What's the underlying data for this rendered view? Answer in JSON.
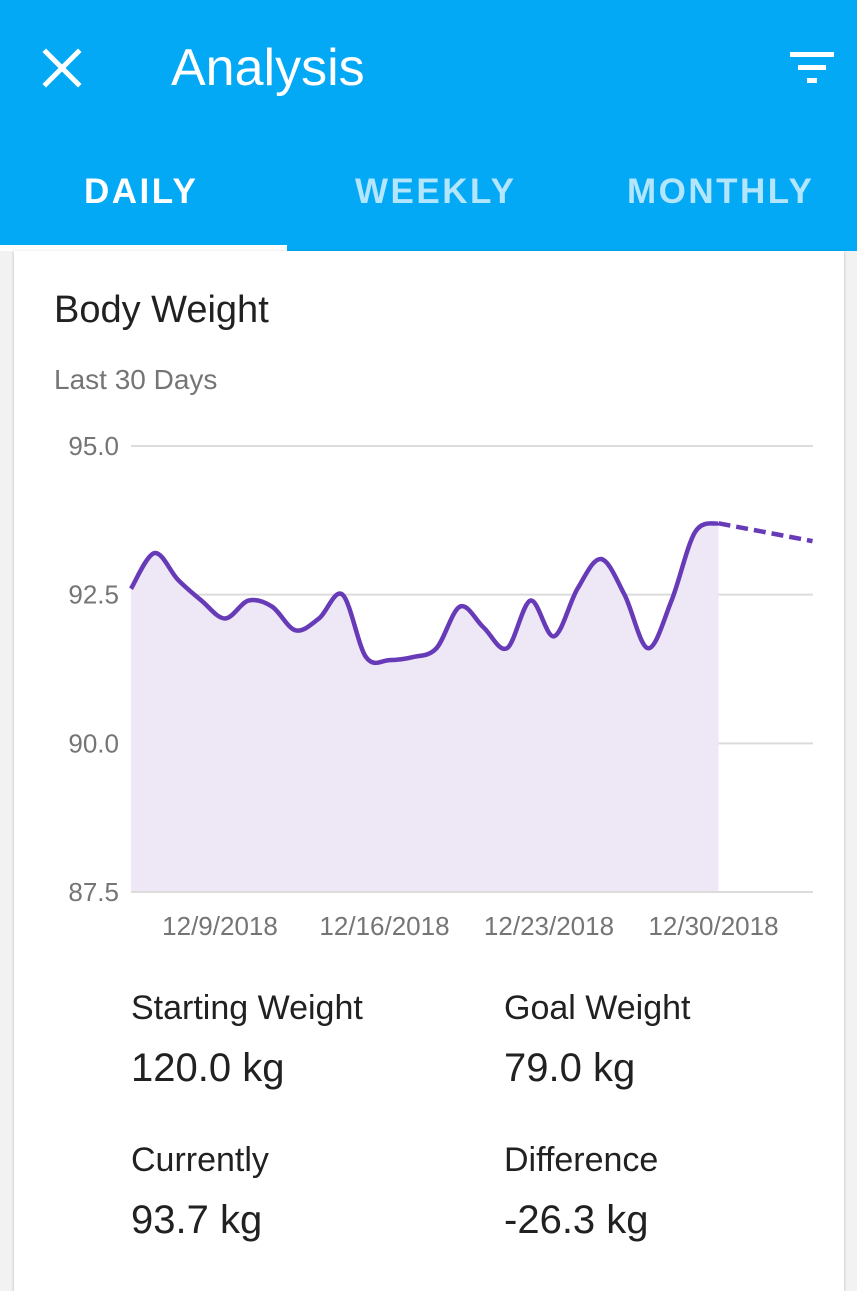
{
  "header": {
    "title": "Analysis",
    "close_icon": "close-icon",
    "filter_icon": "filter-icon",
    "color": "#03A9F4"
  },
  "tabs": [
    {
      "label": "DAILY",
      "active": true
    },
    {
      "label": "WEEKLY",
      "active": false
    },
    {
      "label": "MONTHLY",
      "active": false
    }
  ],
  "card": {
    "title": "Body Weight",
    "subtitle": "Last 30 Days"
  },
  "chart_data": {
    "type": "area",
    "ylim": [
      87.5,
      95.0
    ],
    "yticks": [
      "95.0",
      "92.5",
      "90.0",
      "87.5"
    ],
    "xtick_labels": [
      "12/9/2018",
      "12/16/2018",
      "12/23/2018",
      "12/30/2018"
    ],
    "grid": true,
    "line_color": "#673AB7",
    "fill_color": "#EDE7F6",
    "series": [
      {
        "x": [
          "12/5/2018",
          "12/6/2018",
          "12/7/2018",
          "12/8/2018",
          "12/9/2018",
          "12/10/2018",
          "12/11/2018",
          "12/12/2018",
          "12/13/2018",
          "12/14/2018",
          "12/15/2018",
          "12/16/2018",
          "12/17/2018",
          "12/18/2018",
          "12/19/2018",
          "12/20/2018",
          "12/21/2018",
          "12/22/2018",
          "12/23/2018",
          "12/24/2018",
          "12/25/2018",
          "12/26/2018",
          "12/27/2018",
          "12/28/2018",
          "12/29/2018",
          "12/30/2018"
        ],
        "values": [
          92.6,
          93.2,
          92.75,
          92.4,
          92.1,
          92.4,
          92.3,
          91.9,
          92.1,
          92.5,
          91.45,
          91.4,
          91.45,
          91.6,
          92.3,
          91.95,
          91.6,
          92.4,
          91.8,
          92.6,
          93.1,
          92.5,
          91.6,
          92.4,
          93.55,
          93.7
        ]
      }
    ],
    "projection": {
      "x": [
        "12/30/2018",
        "1/3/2019"
      ],
      "values": [
        93.7,
        93.4
      ],
      "style": "dashed"
    }
  },
  "stats": [
    {
      "label": "Starting Weight",
      "value": "120.0 kg"
    },
    {
      "label": "Goal Weight",
      "value": "79.0 kg"
    },
    {
      "label": "Currently",
      "value": "93.7 kg"
    },
    {
      "label": "Difference",
      "value": "-26.3 kg"
    }
  ]
}
